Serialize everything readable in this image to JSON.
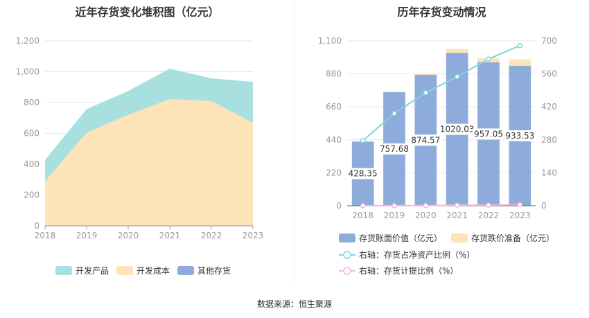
{
  "left_chart": {
    "title": "近年存货变化堆积图（亿元）"
  },
  "right_chart": {
    "title": "历年存货变动情况"
  },
  "source": "数据来源：恒生聚源",
  "colors": {
    "teal": "#a8e0e0",
    "peach": "#fde3b8",
    "blue": "#8eacdb",
    "line_cyan": "#7fd5d8",
    "line_pink": "#f0b8dc",
    "axis": "#999999",
    "grid": "#e6e6e6"
  },
  "chart_data": [
    {
      "type": "area",
      "stacked": true,
      "title": "近年存货变化堆积图（亿元）",
      "x": [
        "2018",
        "2019",
        "2020",
        "2021",
        "2022",
        "2023"
      ],
      "series": [
        {
          "name": "开发成本",
          "values": [
            290,
            605,
            720,
            822,
            810,
            668
          ]
        },
        {
          "name": "开发产品",
          "values": [
            138,
            153,
            155,
            198,
            147,
            266
          ]
        },
        {
          "name": "其他存货",
          "values": [
            0,
            0,
            0,
            0,
            0,
            0
          ]
        }
      ],
      "ylim": [
        0,
        1200
      ],
      "yticks": [
        "0",
        "200",
        "400",
        "600",
        "800",
        "1,000",
        "1,200"
      ],
      "legend": [
        "开发产品",
        "开发成本",
        "其他存货"
      ],
      "legend_position": "bottom",
      "grid": true
    },
    {
      "type": "bar",
      "stacked": true,
      "title": "历年存货变动情况",
      "x": [
        "2018",
        "2019",
        "2020",
        "2021",
        "2022",
        "2023"
      ],
      "series": [
        {
          "name": "存货账面价值（亿元）",
          "values": [
            428.35,
            757.68,
            874.57,
            1020.03,
            957.05,
            933.53
          ],
          "labels": [
            "428.35",
            "757.68",
            "874.57",
            "1020.03",
            "957.05",
            "933.53"
          ]
        },
        {
          "name": "存货跌价准备（亿元）",
          "values": [
            0,
            3,
            8,
            26,
            28,
            43
          ]
        }
      ],
      "lines": [
        {
          "name": "右轴：存货占净资产比例（%）",
          "axis": "right",
          "values": [
            277,
            392,
            480,
            548,
            623,
            680
          ]
        },
        {
          "name": "右轴：存货计提比例（%）",
          "axis": "right",
          "values": [
            0.1,
            0.4,
            0.9,
            2.5,
            2.8,
            4.4
          ]
        }
      ],
      "ylim_left": [
        0,
        1100
      ],
      "yticks_left": [
        "0",
        "220",
        "440",
        "660",
        "880",
        "1,100"
      ],
      "ylim_right": [
        0,
        700
      ],
      "yticks_right": [
        "0",
        "140",
        "280",
        "420",
        "560",
        "700"
      ],
      "legend_position": "bottom",
      "grid": true
    }
  ]
}
